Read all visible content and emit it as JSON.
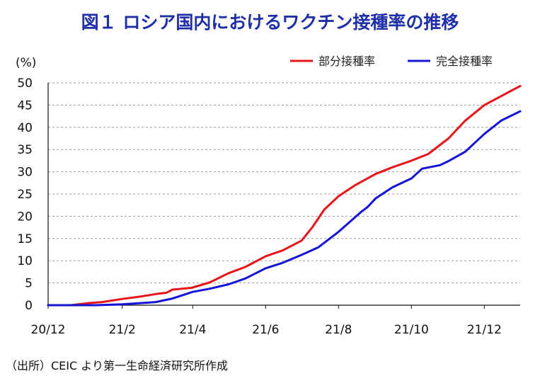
{
  "title": "図１ ロシア国内におけるワクチン接種率の推移",
  "source": "（出所）CEIC より第一生命経済研究所作成",
  "chart_data": {
    "type": "line",
    "title": "図１ ロシア国内におけるワクチン接種率の推移",
    "ylabel": "(%)",
    "xlabel": "",
    "ylim": [
      0,
      50
    ],
    "yticks": [
      0,
      5,
      10,
      15,
      20,
      25,
      30,
      35,
      40,
      45,
      50
    ],
    "xlim": [
      "2020-12-01",
      "2021-12-31"
    ],
    "x_tick_labels": [
      "20/12",
      "21/2",
      "21/4",
      "21/6",
      "21/8",
      "21/10",
      "21/12"
    ],
    "x_tick_dates": [
      "2020-12-01",
      "2021-02-01",
      "2021-04-01",
      "2021-06-01",
      "2021-08-01",
      "2021-10-01",
      "2021-12-01"
    ],
    "grid": "horizontal-dashed",
    "legend": "top-right",
    "series": [
      {
        "name": "部分接種率",
        "color": "#e8141b",
        "points": [
          [
            "2020-12-01",
            0
          ],
          [
            "2020-12-20",
            0
          ],
          [
            "2021-01-05",
            0.5
          ],
          [
            "2021-01-15",
            0.7
          ],
          [
            "2021-02-01",
            1.4
          ],
          [
            "2021-02-15",
            1.9
          ],
          [
            "2021-03-01",
            2.5
          ],
          [
            "2021-03-10",
            2.8
          ],
          [
            "2021-03-15",
            3.5
          ],
          [
            "2021-03-31",
            3.9
          ],
          [
            "2021-04-15",
            5.1
          ],
          [
            "2021-05-01",
            7.2
          ],
          [
            "2021-05-15",
            8.6
          ],
          [
            "2021-06-01",
            11.0
          ],
          [
            "2021-06-15",
            12.3
          ],
          [
            "2021-07-01",
            14.5
          ],
          [
            "2021-07-10",
            17.5
          ],
          [
            "2021-07-20",
            21.5
          ],
          [
            "2021-08-01",
            24.5
          ],
          [
            "2021-08-15",
            27.0
          ],
          [
            "2021-09-01",
            29.5
          ],
          [
            "2021-09-15",
            31.0
          ],
          [
            "2021-10-01",
            32.5
          ],
          [
            "2021-10-15",
            34.0
          ],
          [
            "2021-11-01",
            37.5
          ],
          [
            "2021-11-15",
            41.5
          ],
          [
            "2021-12-01",
            45.0
          ],
          [
            "2021-12-15",
            47.0
          ],
          [
            "2021-12-31",
            49.3
          ]
        ]
      },
      {
        "name": "完全接種率",
        "color": "#1414d8",
        "points": [
          [
            "2020-12-01",
            0
          ],
          [
            "2021-01-10",
            0
          ],
          [
            "2021-02-01",
            0.2
          ],
          [
            "2021-03-01",
            0.7
          ],
          [
            "2021-03-15",
            1.5
          ],
          [
            "2021-04-01",
            3.0
          ],
          [
            "2021-04-15",
            3.7
          ],
          [
            "2021-05-01",
            4.7
          ],
          [
            "2021-05-15",
            6.0
          ],
          [
            "2021-06-01",
            8.3
          ],
          [
            "2021-06-15",
            9.5
          ],
          [
            "2021-07-01",
            11.3
          ],
          [
            "2021-07-15",
            13.0
          ],
          [
            "2021-08-01",
            16.5
          ],
          [
            "2021-08-20",
            21.0
          ],
          [
            "2021-08-25",
            22.0
          ],
          [
            "2021-09-01",
            24.0
          ],
          [
            "2021-09-15",
            26.5
          ],
          [
            "2021-10-01",
            28.5
          ],
          [
            "2021-10-10",
            30.7
          ],
          [
            "2021-10-25",
            31.5
          ],
          [
            "2021-11-01",
            32.4
          ],
          [
            "2021-11-15",
            34.5
          ],
          [
            "2021-12-01",
            38.5
          ],
          [
            "2021-12-15",
            41.5
          ],
          [
            "2021-12-31",
            43.6
          ]
        ]
      }
    ]
  }
}
